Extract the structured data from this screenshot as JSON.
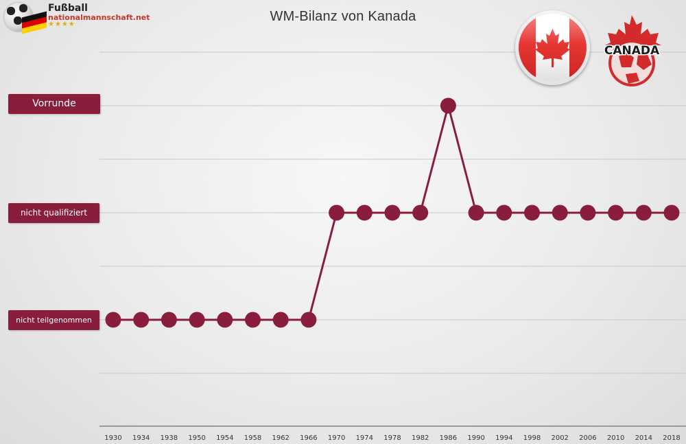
{
  "site_logo": {
    "line1": "Fußball",
    "line2": "nationalmannschaft.net",
    "stars": "★★★★"
  },
  "association_logo": {
    "text": "CANADA"
  },
  "colors": {
    "accent": "#891d3c",
    "flag_red": "#e52b27",
    "grid": "#c8c8c8",
    "axis": "#9a9a9a"
  },
  "chart_data": {
    "type": "line",
    "title": "WM-Bilanz von Kanada",
    "xlabel": "",
    "ylabel": "",
    "levels": [
      "nicht teilgenommen",
      "nicht qualifiziert",
      "Vorrunde"
    ],
    "x": [
      "1930",
      "1934",
      "1938",
      "1950",
      "1954",
      "1958",
      "1962",
      "1966",
      "1970",
      "1974",
      "1978",
      "1982",
      "1986",
      "1990",
      "1994",
      "1998",
      "2002",
      "2006",
      "2010",
      "2014",
      "2018"
    ],
    "series": [
      {
        "values": [
          0,
          0,
          0,
          0,
          0,
          0,
          0,
          0,
          1,
          1,
          1,
          1,
          2,
          1,
          1,
          1,
          1,
          1,
          1,
          1,
          1
        ]
      }
    ],
    "ylim": [
      -1,
      3
    ],
    "grid": true,
    "legend": "none"
  }
}
